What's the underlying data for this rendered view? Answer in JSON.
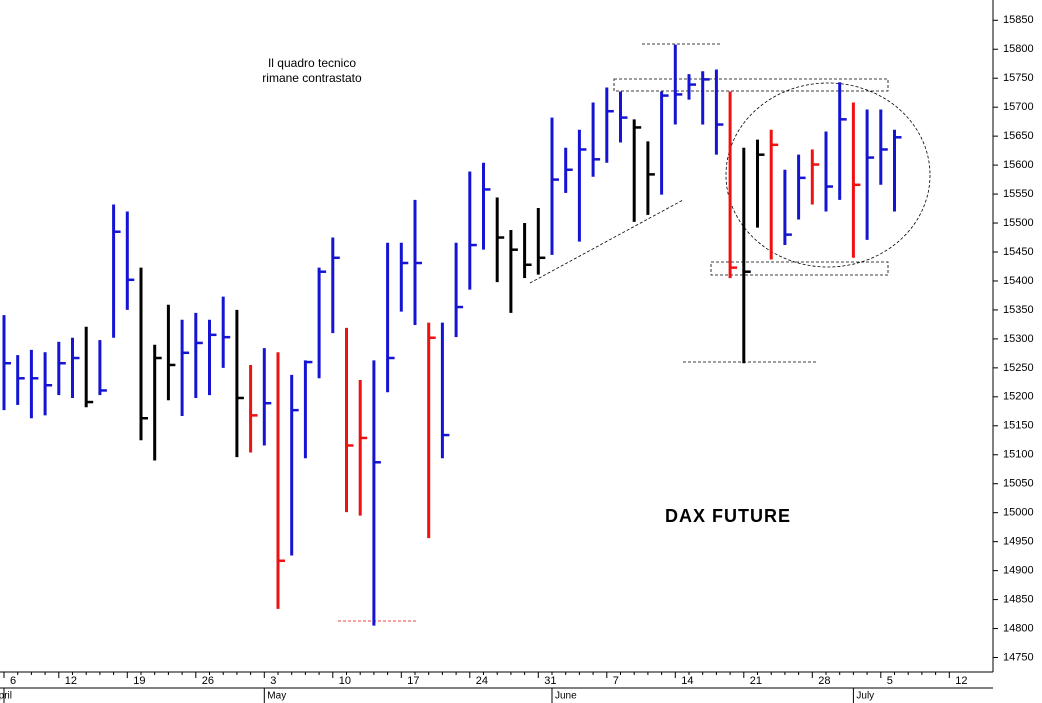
{
  "chart_data": {
    "type": "ohlc",
    "title": "DAX FUTURE",
    "annotations": [
      "Il quadro tecnico",
      "rimane contrastato"
    ],
    "categories": [
      "6",
      null,
      null,
      null,
      "12",
      null,
      null,
      null,
      null,
      "19",
      null,
      null,
      null,
      null,
      "26",
      null,
      null,
      null,
      null,
      "3",
      null,
      null,
      null,
      null,
      "10",
      null,
      null,
      null,
      null,
      "17",
      null,
      null,
      null,
      null,
      "24",
      null,
      null,
      null,
      null,
      "31",
      null,
      null,
      null,
      null,
      "7",
      null,
      null,
      null,
      null,
      "14",
      null,
      null,
      null,
      null,
      "21",
      null,
      null,
      null,
      null,
      "28",
      null,
      null,
      null,
      null,
      "5",
      null,
      null,
      null,
      null,
      "12"
    ],
    "months": [
      "April",
      null,
      null,
      null,
      null,
      null,
      null,
      null,
      null,
      null,
      null,
      null,
      null,
      null,
      null,
      null,
      null,
      null,
      null,
      "May",
      null,
      null,
      null,
      null,
      null,
      null,
      null,
      null,
      null,
      null,
      null,
      null,
      null,
      null,
      null,
      null,
      null,
      null,
      null,
      null,
      "June",
      null,
      null,
      null,
      null,
      null,
      null,
      null,
      null,
      null,
      null,
      null,
      null,
      null,
      null,
      null,
      null,
      null,
      null,
      null,
      null,
      null,
      "July",
      null,
      null,
      null,
      null,
      null,
      null,
      null
    ],
    "high": [
      15341,
      15272,
      15281,
      15277,
      15295,
      15302,
      15321,
      15298,
      15532,
      15520,
      15423,
      15290,
      15359,
      15333,
      15345,
      15333,
      15373,
      15350,
      15255,
      15284,
      15277,
      15238,
      15263,
      15423,
      15475,
      15319,
      15229,
      15263,
      15466,
      15466,
      15540,
      15328,
      15328,
      15466,
      15589,
      15604,
      15544,
      15488,
      15500,
      15526,
      15682,
      15630,
      15661,
      15708,
      15734,
      15727,
      15679,
      15641,
      15727,
      15808,
      15757,
      15762,
      15765,
      15727,
      15630,
      15644,
      15661,
      15592,
      15618,
      15627,
      15658,
      15743,
      15708,
      15696,
      15696,
      15661,
      null,
      null,
      null,
      null
    ],
    "low": [
      15177,
      15186,
      15163,
      15168,
      15203,
      15198,
      15182,
      15203,
      15302,
      15350,
      15125,
      15090,
      15194,
      15167,
      15198,
      15203,
      15250,
      15096,
      15104,
      15116,
      14834,
      14926,
      15094,
      15232,
      15310,
      15001,
      14995,
      14805,
      15208,
      15347,
      15324,
      14956,
      15094,
      15303,
      15385,
      15454,
      15398,
      15345,
      15405,
      15411,
      15445,
      15552,
      15468,
      15580,
      15604,
      15639,
      15502,
      15514,
      15549,
      15670,
      15713,
      15670,
      15618,
      15405,
      15258,
      15492,
      15437,
      15462,
      15506,
      15532,
      15520,
      15540,
      15440,
      15471,
      15566,
      15520,
      null,
      null,
      null,
      null
    ],
    "close": [
      15258,
      15232,
      15232,
      15220,
      15258,
      15267,
      15191,
      15211,
      15485,
      15402,
      15163,
      15267,
      15255,
      15276,
      15293,
      15307,
      15303,
      15198,
      15168,
      15189,
      14917,
      15177,
      15260,
      15416,
      15440,
      15116,
      15129,
      15087,
      15267,
      15431,
      15431,
      15302,
      15134,
      15355,
      15462,
      15558,
      15475,
      15454,
      15428,
      15440,
      15575,
      15592,
      15627,
      15610,
      15693,
      15682,
      15665,
      15584,
      15720,
      15722,
      15739,
      15748,
      15670,
      15423,
      15416,
      15618,
      15635,
      15480,
      15578,
      15601,
      15563,
      15679,
      15566,
      15613,
      15627,
      15648,
      null,
      null,
      null,
      null
    ],
    "palette": {
      "blue": "#1414d2",
      "red": "#ee1111",
      "black": "#000000"
    },
    "bar_colors": [
      "blue",
      "blue",
      "blue",
      "blue",
      "blue",
      "blue",
      "black",
      "blue",
      "blue",
      "blue",
      "black",
      "black",
      "black",
      "blue",
      "blue",
      "blue",
      "blue",
      "black",
      "red",
      "blue",
      "red",
      "blue",
      "blue",
      "blue",
      "blue",
      "red",
      "red",
      "blue",
      "blue",
      "blue",
      "blue",
      "red",
      "blue",
      "blue",
      "blue",
      "blue",
      "black",
      "black",
      "black",
      "black",
      "blue",
      "blue",
      "blue",
      "blue",
      "blue",
      "blue",
      "black",
      "black",
      "blue",
      "blue",
      "blue",
      "blue",
      "blue",
      "red",
      "black",
      "black",
      "red",
      "blue",
      "blue",
      "red",
      "blue",
      "blue",
      "red",
      "blue",
      "blue",
      "blue",
      null,
      null,
      null,
      null
    ],
    "ylim": [
      14725,
      15885
    ],
    "yticks": [
      14750,
      14800,
      14850,
      14900,
      14950,
      15000,
      15050,
      15100,
      15150,
      15200,
      15250,
      15300,
      15350,
      15400,
      15450,
      15500,
      15550,
      15600,
      15650,
      15700,
      15750,
      15800,
      15850
    ]
  }
}
